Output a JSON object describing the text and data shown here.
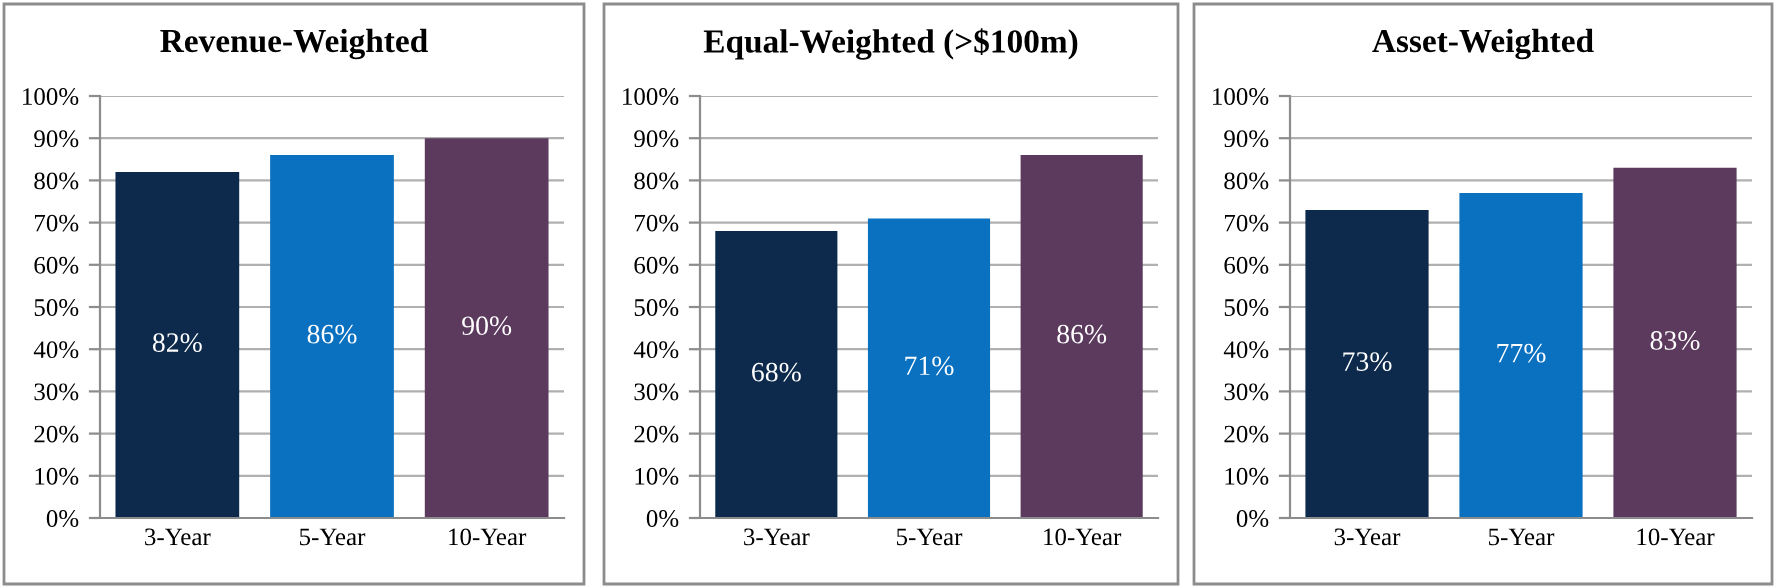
{
  "chart_data": [
    {
      "type": "bar",
      "title": "Revenue-Weighted",
      "categories": [
        "3-Year",
        "5-Year",
        "10-Year"
      ],
      "values": [
        82,
        86,
        90
      ],
      "colors": [
        "#0d2a4c",
        "#0a70c0",
        "#5c3a5e"
      ],
      "value_labels": [
        "82%",
        "86%",
        "90%"
      ],
      "ylim": [
        0,
        100
      ],
      "yticks": [
        {
          "value": 0,
          "label": "0%"
        },
        {
          "value": 10,
          "label": "10%"
        },
        {
          "value": 20,
          "label": "20%"
        },
        {
          "value": 30,
          "label": "30%"
        },
        {
          "value": 40,
          "label": "40%"
        },
        {
          "value": 50,
          "label": "50%"
        },
        {
          "value": 60,
          "label": "60%"
        },
        {
          "value": 70,
          "label": "70%"
        },
        {
          "value": 80,
          "label": "80%"
        },
        {
          "value": 90,
          "label": "90%"
        },
        {
          "value": 100,
          "label": "100%"
        }
      ],
      "grid": "y",
      "legend": false
    },
    {
      "type": "bar",
      "title": "Equal-Weighted (>$100m)",
      "categories": [
        "3-Year",
        "5-Year",
        "10-Year"
      ],
      "values": [
        68,
        71,
        86
      ],
      "colors": [
        "#0d2a4c",
        "#0a70c0",
        "#5c3a5e"
      ],
      "value_labels": [
        "68%",
        "71%",
        "86%"
      ],
      "ylim": [
        0,
        100
      ],
      "yticks": [
        {
          "value": 0,
          "label": "0%"
        },
        {
          "value": 10,
          "label": "10%"
        },
        {
          "value": 20,
          "label": "20%"
        },
        {
          "value": 30,
          "label": "30%"
        },
        {
          "value": 40,
          "label": "40%"
        },
        {
          "value": 50,
          "label": "50%"
        },
        {
          "value": 60,
          "label": "60%"
        },
        {
          "value": 70,
          "label": "70%"
        },
        {
          "value": 80,
          "label": "80%"
        },
        {
          "value": 90,
          "label": "90%"
        },
        {
          "value": 100,
          "label": "100%"
        }
      ],
      "grid": "y",
      "legend": false
    },
    {
      "type": "bar",
      "title": "Asset-Weighted",
      "categories": [
        "3-Year",
        "5-Year",
        "10-Year"
      ],
      "values": [
        73,
        77,
        83
      ],
      "colors": [
        "#0d2a4c",
        "#0a70c0",
        "#5c3a5e"
      ],
      "value_labels": [
        "73%",
        "77%",
        "83%"
      ],
      "ylim": [
        0,
        100
      ],
      "yticks": [
        {
          "value": 0,
          "label": "0%"
        },
        {
          "value": 10,
          "label": "10%"
        },
        {
          "value": 20,
          "label": "20%"
        },
        {
          "value": 30,
          "label": "30%"
        },
        {
          "value": 40,
          "label": "40%"
        },
        {
          "value": 50,
          "label": "50%"
        },
        {
          "value": 60,
          "label": "60%"
        },
        {
          "value": 70,
          "label": "70%"
        },
        {
          "value": 80,
          "label": "80%"
        },
        {
          "value": 90,
          "label": "90%"
        },
        {
          "value": 100,
          "label": "100%"
        }
      ],
      "grid": "y",
      "legend": false
    }
  ]
}
